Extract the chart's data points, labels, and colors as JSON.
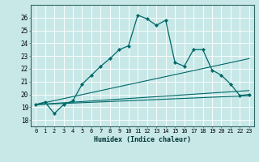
{
  "xlabel": "Humidex (Indice chaleur)",
  "bg_color": "#c8e8e8",
  "grid_color": "#ffffff",
  "line_color": "#006868",
  "xlim": [
    -0.5,
    23.5
  ],
  "ylim": [
    17.5,
    27.0
  ],
  "xticks": [
    0,
    1,
    2,
    3,
    4,
    5,
    6,
    7,
    8,
    9,
    10,
    11,
    12,
    13,
    14,
    15,
    16,
    17,
    18,
    19,
    20,
    21,
    22,
    23
  ],
  "yticks": [
    18,
    19,
    20,
    21,
    22,
    23,
    24,
    25,
    26
  ],
  "series1_x": [
    0,
    1,
    2,
    3,
    4,
    5,
    6,
    7,
    8,
    9,
    10,
    11,
    12,
    13,
    14,
    15,
    16,
    17,
    18,
    19,
    20,
    21,
    22,
    23
  ],
  "series1_y": [
    19.2,
    19.4,
    18.5,
    19.2,
    19.5,
    20.8,
    21.5,
    22.2,
    22.8,
    23.5,
    23.8,
    26.2,
    25.9,
    25.4,
    25.8,
    22.5,
    22.2,
    23.5,
    23.5,
    21.9,
    21.5,
    20.8,
    19.9,
    20.0
  ],
  "line2_x": [
    0,
    23
  ],
  "line2_y": [
    19.2,
    22.8
  ],
  "line3_x": [
    0,
    23
  ],
  "line3_y": [
    19.2,
    19.9
  ],
  "line4_x": [
    0,
    23
  ],
  "line4_y": [
    19.2,
    20.3
  ]
}
